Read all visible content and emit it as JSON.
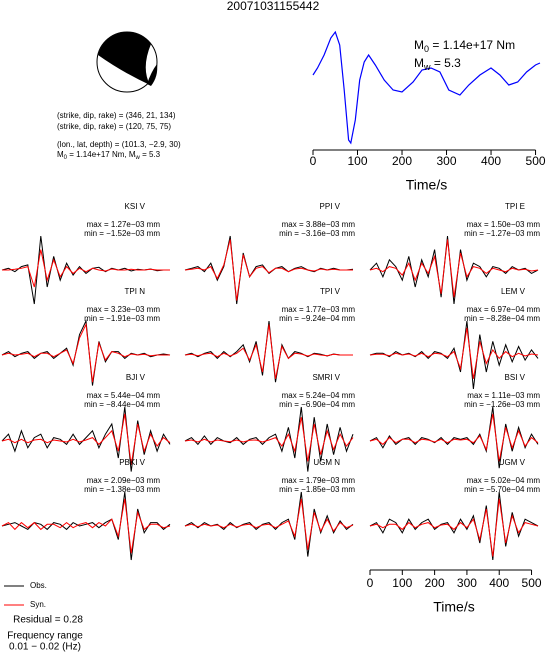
{
  "title": "20071031155442",
  "focal": {
    "lines": [
      "(strike, dip, rake) = (346, 21, 134)",
      "(strike, dip, rake) = (120, 75, 75)",
      "(lon., lat, depth) = (101.3, −2.9, 30)"
    ],
    "moment": {
      "m0_symbol": "M",
      "m0_sub": "0",
      "m0_text": " = 1.14e+17 Nm, ",
      "mw_symbol": "M",
      "mw_sub": "w",
      "mw_text": " = 5.3"
    }
  },
  "stf": {
    "type": "line",
    "color": "#0000ff",
    "xlabel": "Time/s",
    "x": [
      0,
      10,
      25,
      40,
      50,
      60,
      70,
      80,
      85,
      95,
      105,
      115,
      125,
      140,
      160,
      180,
      200,
      225,
      245,
      265,
      285,
      305,
      330,
      350,
      375,
      400,
      420,
      440,
      460,
      480,
      500,
      510
    ],
    "values": [
      70,
      77,
      90,
      107,
      113,
      100,
      55,
      5,
      2,
      25,
      65,
      83,
      90,
      80,
      65,
      55,
      53,
      63,
      75,
      77,
      73,
      55,
      50,
      60,
      70,
      77,
      70,
      60,
      63,
      73,
      80,
      82
    ],
    "xlim": [
      0,
      510
    ],
    "ylim": [
      0,
      115
    ],
    "xticks": [
      0,
      100,
      200,
      300,
      400,
      500
    ],
    "annotations": [
      {
        "symbol": "M",
        "sub": "0",
        "text": " = 1.14e+17 Nm"
      },
      {
        "symbol": "M",
        "sub": "w",
        "text": " = 5.3"
      }
    ]
  },
  "obs_color": "#000000",
  "syn_color": "#ff0000",
  "sample_times": [
    0,
    20,
    40,
    60,
    80,
    100,
    120,
    140,
    160,
    180,
    200,
    220,
    240,
    260,
    280,
    300,
    320,
    340,
    360,
    380,
    400,
    420,
    440,
    460,
    480,
    500,
    520
  ],
  "time_axis": {
    "xlim": [
      0,
      520
    ],
    "xticks": [
      0,
      100,
      200,
      300,
      400,
      500
    ],
    "xlabel": "Time/s"
  },
  "panels": [
    {
      "station": "KSI V",
      "max": "max = 1.27e−03 mm",
      "min": "min = −1.52e−03 mm",
      "obs": [
        0,
        0.05,
        -0.05,
        0.1,
        0.15,
        -1.0,
        1.0,
        -0.5,
        0.4,
        -0.3,
        0.2,
        -0.15,
        0.1,
        -0.1,
        0.05,
        0.08,
        -0.05,
        0.05,
        0,
        0.05,
        -0.03,
        0.02,
        0,
        0.03,
        -0.02,
        0,
        0
      ],
      "syn": [
        0,
        0,
        0.02,
        0.05,
        0.1,
        -0.5,
        0.6,
        -0.3,
        0.3,
        -0.2,
        0.1,
        -0.1,
        0.05,
        -0.05,
        0.05,
        0,
        -0.03,
        0.03,
        0,
        0,
        0.02,
        0,
        0,
        0.02,
        0,
        0,
        0
      ]
    },
    {
      "station": "PPI V",
      "max": "max = 3.88e−03 mm",
      "min": "min = −3.16e−03 mm",
      "obs": [
        0,
        0.05,
        0.1,
        -0.05,
        0.2,
        -0.3,
        0.1,
        1.0,
        -1.0,
        0.5,
        -0.2,
        0.1,
        0.15,
        -0.1,
        0.05,
        0.1,
        -0.05,
        0.05,
        0.1,
        0,
        -0.05,
        0.05,
        0,
        0.05,
        0,
        0,
        0.02
      ],
      "syn": [
        0,
        0.02,
        0.05,
        0,
        0.1,
        -0.25,
        0.15,
        0.9,
        -0.9,
        0.45,
        -0.2,
        0.05,
        0.1,
        -0.08,
        0.05,
        0.05,
        -0.05,
        0.03,
        0.05,
        0,
        -0.03,
        0.03,
        0,
        0.02,
        0,
        0,
        0
      ]
    },
    {
      "station": "TPI E",
      "max": "max = 1.50e−03 mm",
      "min": "min = −1.27e−03 mm",
      "obs": [
        0,
        0.2,
        -0.2,
        0.3,
        0.1,
        -0.3,
        0.4,
        -0.5,
        0.3,
        -0.2,
        0.6,
        -0.8,
        1.0,
        -1.0,
        0.6,
        -0.3,
        0.2,
        0.1,
        -0.2,
        0.1,
        0.05,
        -0.1,
        0.1,
        0,
        0.05,
        -0.1,
        0
      ],
      "syn": [
        0,
        0.05,
        -0.05,
        0.1,
        0.05,
        -0.15,
        0.2,
        -0.3,
        0.2,
        -0.1,
        0.4,
        -0.7,
        0.9,
        -0.8,
        0.5,
        -0.2,
        0.1,
        0.05,
        -0.1,
        0.05,
        0,
        -0.05,
        0.05,
        0,
        0.02,
        -0.03,
        0
      ]
    },
    {
      "station": "TPI N",
      "max": "max = 3.23e−03 mm",
      "min": "min = −1.91e−03 mm",
      "obs": [
        0,
        0.1,
        -0.05,
        0.05,
        0.1,
        -0.1,
        0.05,
        0.1,
        -0.1,
        0.05,
        0.2,
        -0.3,
        0.6,
        1.0,
        -0.9,
        0.4,
        -0.2,
        0.1,
        0.1,
        -0.1,
        0.05,
        0,
        0.05,
        -0.05,
        0,
        0.03,
        0
      ],
      "syn": [
        0,
        0.05,
        0,
        0.02,
        0.05,
        -0.05,
        0.05,
        0.05,
        -0.05,
        0.05,
        0.15,
        -0.25,
        0.5,
        0.9,
        -0.8,
        0.35,
        -0.15,
        0.1,
        0.05,
        -0.05,
        0.03,
        0,
        0.02,
        -0.02,
        0,
        0,
        0
      ]
    },
    {
      "station": "TPI V",
      "max": "max = 1.77e−03 mm",
      "min": "min = −9.24e−04 mm",
      "obs": [
        0,
        0.05,
        -0.05,
        0.05,
        0.1,
        -0.1,
        0.1,
        -0.05,
        0.1,
        0.3,
        -0.2,
        0.4,
        -0.6,
        1.0,
        -0.8,
        0.3,
        -0.1,
        0.1,
        0.05,
        -0.05,
        0.05,
        0.02,
        -0.03,
        0.03,
        0,
        0,
        0
      ],
      "syn": [
        0,
        0.02,
        -0.02,
        0.03,
        0.05,
        -0.05,
        0.05,
        -0.03,
        0.05,
        0.2,
        -0.15,
        0.3,
        -0.5,
        0.9,
        -0.7,
        0.25,
        -0.1,
        0.05,
        0.03,
        -0.03,
        0.03,
        0,
        -0.02,
        0.02,
        0,
        0,
        0
      ]
    },
    {
      "station": "LEM V",
      "max": "max = 6.97e−04 mm",
      "min": "min = −8.28e−04 mm",
      "obs": [
        0,
        0.05,
        0.05,
        -0.05,
        0.1,
        0,
        0.05,
        -0.05,
        0.1,
        -0.1,
        0.1,
        0.05,
        -0.1,
        0.2,
        -0.5,
        1.0,
        -1.0,
        0.6,
        -0.5,
        0.4,
        -0.3,
        0.3,
        -0.2,
        0.25,
        -0.15,
        0.15,
        -0.1
      ],
      "syn": [
        0,
        0.02,
        0.02,
        -0.02,
        0.05,
        0,
        0.03,
        -0.03,
        0.05,
        -0.05,
        0.05,
        0.03,
        -0.05,
        0.1,
        -0.4,
        0.8,
        -0.7,
        0.4,
        -0.25,
        0.15,
        -0.1,
        0.1,
        -0.05,
        0.05,
        -0.03,
        0.03,
        0
      ]
    },
    {
      "station": "BJI V",
      "max": "max = 5.44e−04 mm",
      "min": "min = −8.44e−04 mm",
      "obs": [
        0,
        0.2,
        -0.3,
        0.3,
        -0.2,
        0.1,
        0.2,
        -0.2,
        0.1,
        0.05,
        -0.1,
        0.2,
        -0.1,
        0.1,
        0.3,
        -0.2,
        0.2,
        0.5,
        -0.5,
        1.0,
        -0.9,
        0.6,
        -0.4,
        0.3,
        -0.3,
        0.2,
        -0.1
      ],
      "syn": [
        0,
        0.05,
        -0.05,
        0.05,
        -0.05,
        0.03,
        0.05,
        -0.05,
        0.03,
        0,
        -0.03,
        0.05,
        -0.03,
        0.03,
        0.1,
        -0.1,
        0.1,
        0.3,
        -0.3,
        0.8,
        -0.7,
        0.5,
        -0.3,
        0.2,
        -0.15,
        0.1,
        -0.05
      ]
    },
    {
      "station": "SMRI V",
      "max": "max = 5.24e−04 mm",
      "min": "min = −6.90e−04 mm",
      "obs": [
        0,
        0.1,
        -0.1,
        0.15,
        -0.1,
        0.1,
        0,
        -0.05,
        0.1,
        -0.1,
        0.05,
        0.1,
        -0.1,
        0.1,
        0.2,
        -0.3,
        0.4,
        -0.5,
        1.0,
        -0.9,
        0.7,
        -0.6,
        0.5,
        -0.4,
        0.4,
        -0.3,
        0.2
      ],
      "syn": [
        0,
        0.03,
        -0.03,
        0.05,
        -0.03,
        0.03,
        0,
        -0.02,
        0.03,
        -0.03,
        0.02,
        0.03,
        -0.03,
        0.03,
        0.1,
        -0.15,
        0.2,
        -0.3,
        0.7,
        -0.6,
        0.5,
        -0.4,
        0.3,
        -0.25,
        0.2,
        -0.15,
        0.1
      ]
    },
    {
      "station": "BSI V",
      "max": "max = 1.11e−03 mm",
      "min": "min = −1.26e−03 mm",
      "obs": [
        0,
        0.1,
        -0.2,
        0.15,
        -0.1,
        0.05,
        0.1,
        -0.1,
        0.1,
        0.05,
        -0.05,
        0.1,
        -0.1,
        0.1,
        0.05,
        0.1,
        -0.1,
        0.2,
        -0.3,
        1.0,
        -0.8,
        0.5,
        -0.3,
        0.4,
        -0.2,
        0.2,
        -0.1
      ],
      "syn": [
        0,
        0.05,
        -0.1,
        0.1,
        -0.05,
        0.05,
        0.05,
        -0.05,
        0.05,
        0.03,
        -0.03,
        0.05,
        -0.05,
        0.05,
        0.03,
        0.05,
        -0.05,
        0.15,
        -0.25,
        0.8,
        -0.6,
        0.4,
        -0.2,
        0.3,
        -0.15,
        0.1,
        -0.05
      ]
    },
    {
      "station": "PBKI V",
      "max": "max = 2.09e−03 mm",
      "min": "min = −1.38e−03 mm",
      "obs": [
        0,
        0.05,
        0.1,
        0,
        -0.1,
        0.1,
        0.05,
        -0.1,
        0.1,
        0.05,
        -0.1,
        0.1,
        0,
        0.05,
        0.1,
        -0.05,
        0.1,
        0.2,
        -0.4,
        1.0,
        -1.0,
        0.5,
        -0.2,
        0.1,
        0.1,
        -0.1,
        0.05
      ],
      "syn": [
        0,
        0.1,
        -0.1,
        0.1,
        -0.05,
        0.1,
        -0.1,
        0.05,
        0.05,
        -0.05,
        0.1,
        -0.05,
        0.05,
        0.1,
        -0.05,
        0.1,
        0,
        0.2,
        -0.3,
        0.8,
        -0.8,
        0.4,
        -0.1,
        0.05,
        0.05,
        -0.05,
        0
      ]
    },
    {
      "station": "UGM N",
      "max": "max = 1.79e−03 mm",
      "min": "min = −1.85e−03 mm",
      "obs": [
        0,
        0.1,
        -0.05,
        0.1,
        0,
        0.05,
        -0.1,
        0.1,
        -0.05,
        0.05,
        0.1,
        -0.1,
        0.05,
        0.1,
        -0.1,
        0.1,
        0.2,
        -0.4,
        1.0,
        -0.9,
        0.5,
        -0.2,
        0.3,
        -0.2,
        0.15,
        -0.1,
        0.05
      ],
      "syn": [
        0,
        0.05,
        -0.02,
        0.05,
        0,
        0.03,
        -0.05,
        0.05,
        -0.03,
        0.03,
        0.05,
        -0.05,
        0.03,
        0.05,
        -0.05,
        0.05,
        0.15,
        -0.3,
        0.8,
        -0.7,
        0.4,
        -0.15,
        0.2,
        -0.15,
        0.1,
        -0.05,
        0.03
      ]
    },
    {
      "station": "UGM V",
      "max": "max = 5.02e−04 mm",
      "min": "min = −5.70e−04 mm",
      "obs": [
        0,
        0.1,
        -0.2,
        0.2,
        0.1,
        -0.2,
        0.2,
        -0.1,
        0.1,
        0.2,
        -0.1,
        0.05,
        0.1,
        -0.2,
        0.2,
        -0.1,
        0.3,
        -0.5,
        0.6,
        -1.0,
        1.0,
        -0.6,
        0.4,
        -0.3,
        0.2,
        0.1,
        0
      ],
      "syn": [
        0,
        0.05,
        -0.05,
        0.05,
        0.05,
        -0.1,
        0.1,
        -0.05,
        0.05,
        0.1,
        -0.05,
        0.03,
        0.05,
        -0.1,
        0.1,
        -0.05,
        0.2,
        -0.4,
        0.5,
        -0.9,
        0.8,
        -0.5,
        0.3,
        -0.2,
        0.1,
        0.05,
        0
      ]
    }
  ],
  "legend": {
    "obs": "Obs.",
    "syn": "Syn."
  },
  "residual": "Residual = 0.28",
  "frequency": {
    "label": "Frequency range",
    "range": "0.01 − 0.02 (Hz)"
  }
}
